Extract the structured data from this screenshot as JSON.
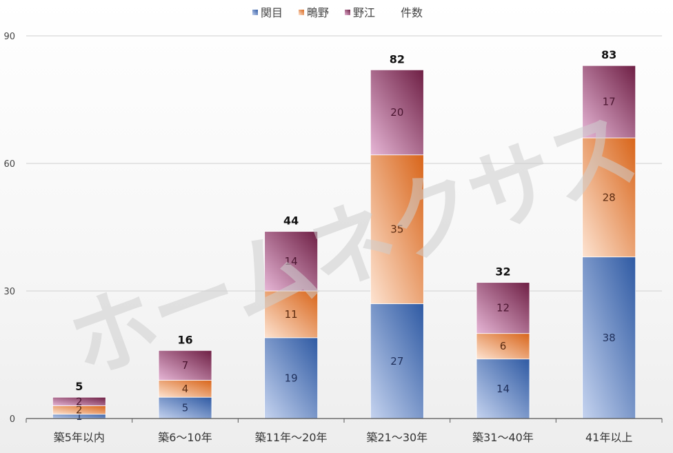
{
  "chart_data": {
    "type": "bar",
    "stacked": true,
    "categories": [
      "築5年以内",
      "築6〜10年",
      "築11年〜20年",
      "築21〜30年",
      "築31〜40年",
      "41年以上"
    ],
    "series": [
      {
        "name": "関目",
        "values": [
          1,
          5,
          19,
          27,
          14,
          38
        ],
        "color": "#4a6fb5"
      },
      {
        "name": "鴫野",
        "values": [
          2,
          4,
          11,
          35,
          6,
          28
        ],
        "color": "#f0a36a"
      },
      {
        "name": "野江",
        "values": [
          2,
          7,
          14,
          20,
          12,
          17
        ],
        "color": "#9c4f7a"
      }
    ],
    "totals_label": "件数",
    "totals": [
      5,
      16,
      44,
      82,
      32,
      83
    ],
    "ylim": [
      0,
      90
    ],
    "yticks": [
      0,
      30,
      60,
      90
    ],
    "grid": true,
    "legend_position": "top-center"
  },
  "watermark": "ホームネクサス"
}
